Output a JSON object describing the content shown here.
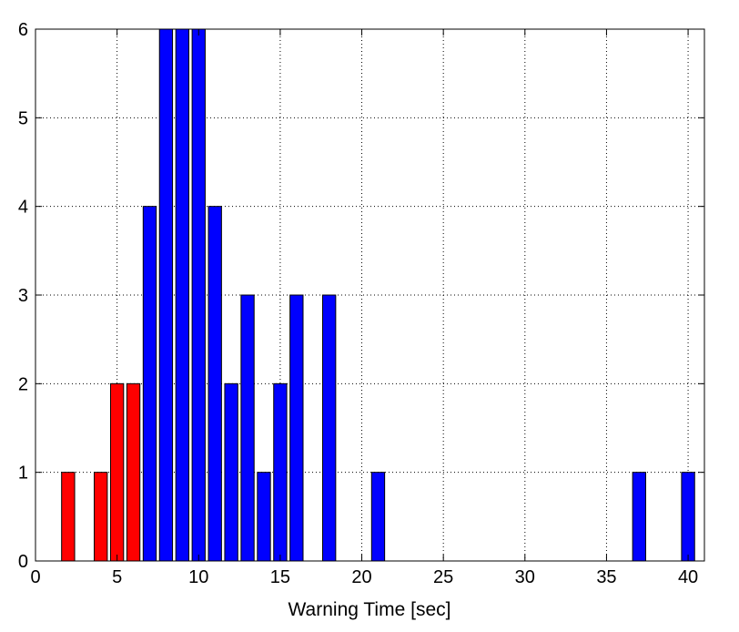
{
  "chart_data": {
    "type": "bar",
    "title": "",
    "xlabel": "Warning Time [sec]",
    "ylabel": "",
    "xlim": [
      0,
      41
    ],
    "ylim": [
      0,
      6
    ],
    "xticks": [
      0,
      5,
      10,
      15,
      20,
      25,
      30,
      35,
      40
    ],
    "yticks": [
      0,
      1,
      2,
      3,
      4,
      5,
      6
    ],
    "grid": true,
    "bar_width": 1,
    "series": [
      {
        "color": "#ff0000",
        "x": [
          2,
          4,
          5,
          6
        ],
        "values": [
          1,
          1,
          2,
          2
        ]
      },
      {
        "color": "#0000ff",
        "x": [
          7,
          8,
          9,
          10,
          11,
          12,
          13,
          14,
          15,
          16,
          18,
          21,
          37,
          40
        ],
        "values": [
          4,
          6,
          6,
          6,
          4,
          2,
          3,
          1,
          2,
          3,
          3,
          1,
          1,
          1
        ]
      }
    ]
  }
}
